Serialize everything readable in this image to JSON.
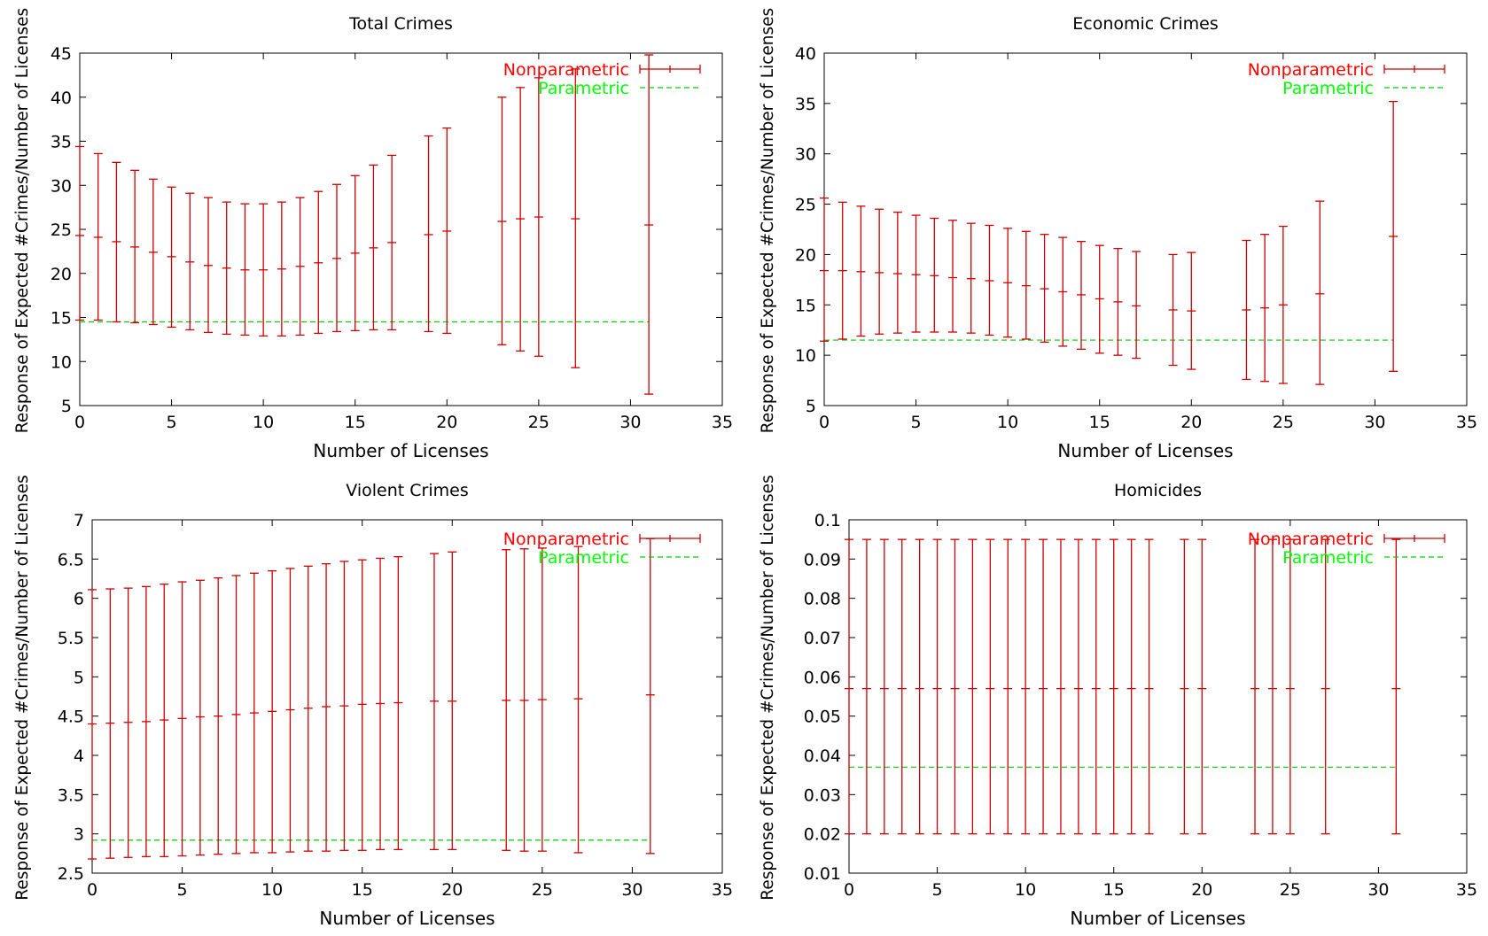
{
  "colors": {
    "nonparametric": "#cc0000",
    "parametric": "#00cc00",
    "axis": "#000000",
    "text": "#000000",
    "legend_nonparametric_text": "#ff0000",
    "legend_parametric_text": "#00ff00"
  },
  "chart_data": [
    {
      "type": "line",
      "title": "Total Crimes",
      "xlabel": "Number of Licenses",
      "ylabel": "Response of Expected #Crimes/Number of Licenses",
      "xlim": [
        0,
        35
      ],
      "ylim": [
        5,
        45
      ],
      "xticks": [
        0,
        5,
        10,
        15,
        20,
        25,
        30,
        35
      ],
      "yticks": [
        5,
        10,
        15,
        20,
        25,
        30,
        35,
        40,
        45
      ],
      "ytick_labels": [
        "5",
        "10",
        "15",
        "20",
        "25",
        "30",
        "35",
        "40",
        "45"
      ],
      "grid": false,
      "legend": "top-right",
      "series": [
        {
          "name": "Nonparametric",
          "style": "errorbars",
          "x": [
            0,
            1,
            2,
            3,
            4,
            5,
            6,
            7,
            8,
            9,
            10,
            11,
            12,
            13,
            14,
            15,
            16,
            17,
            19,
            20,
            23,
            24,
            25,
            27,
            31
          ],
          "y": [
            24.3,
            24.1,
            23.6,
            23.0,
            22.4,
            21.9,
            21.3,
            20.9,
            20.6,
            20.4,
            20.4,
            20.5,
            20.8,
            21.2,
            21.7,
            22.3,
            22.9,
            23.5,
            24.4,
            24.8,
            25.9,
            26.2,
            26.4,
            26.2,
            25.5
          ],
          "ylow": [
            14.7,
            14.7,
            14.5,
            14.4,
            14.2,
            13.9,
            13.6,
            13.3,
            13.1,
            13.0,
            12.9,
            12.9,
            13.0,
            13.2,
            13.4,
            13.5,
            13.6,
            13.6,
            13.4,
            13.2,
            11.9,
            11.2,
            10.6,
            9.3,
            6.3
          ],
          "yhigh": [
            34.4,
            33.6,
            32.6,
            31.7,
            30.7,
            29.8,
            29.1,
            28.6,
            28.1,
            27.9,
            27.9,
            28.1,
            28.6,
            29.3,
            30.1,
            31.1,
            32.3,
            33.4,
            35.6,
            36.5,
            40.0,
            41.1,
            42.2,
            43.2,
            44.8
          ]
        },
        {
          "name": "Parametric",
          "style": "dashed-line",
          "x": [
            0,
            31
          ],
          "y": [
            14.5,
            14.5
          ]
        }
      ]
    },
    {
      "type": "line",
      "title": "Economic Crimes",
      "xlabel": "Number of Licenses",
      "ylabel": "Response of Expected #Crimes/Number of Licenses",
      "xlim": [
        0,
        35
      ],
      "ylim": [
        5,
        40
      ],
      "xticks": [
        0,
        5,
        10,
        15,
        20,
        25,
        30,
        35
      ],
      "yticks": [
        5,
        10,
        15,
        20,
        25,
        30,
        35,
        40
      ],
      "ytick_labels": [
        "5",
        "10",
        "15",
        "20",
        "25",
        "30",
        "35",
        "40"
      ],
      "grid": false,
      "legend": "top-right",
      "series": [
        {
          "name": "Nonparametric",
          "style": "errorbars",
          "x": [
            0,
            1,
            2,
            3,
            4,
            5,
            6,
            7,
            8,
            9,
            10,
            11,
            12,
            13,
            14,
            15,
            16,
            17,
            19,
            20,
            23,
            24,
            25,
            27,
            31
          ],
          "y": [
            18.4,
            18.4,
            18.3,
            18.2,
            18.1,
            18.0,
            17.9,
            17.7,
            17.6,
            17.4,
            17.2,
            16.9,
            16.6,
            16.3,
            16.0,
            15.6,
            15.3,
            14.9,
            14.5,
            14.4,
            14.5,
            14.7,
            15.0,
            16.1,
            21.8
          ],
          "ylow": [
            11.4,
            11.6,
            11.9,
            12.1,
            12.2,
            12.3,
            12.3,
            12.3,
            12.2,
            12.0,
            11.8,
            11.6,
            11.3,
            10.9,
            10.6,
            10.2,
            10.0,
            9.7,
            9.0,
            8.6,
            7.6,
            7.4,
            7.2,
            7.1,
            8.4
          ],
          "yhigh": [
            25.6,
            25.2,
            24.8,
            24.5,
            24.2,
            23.9,
            23.6,
            23.4,
            23.1,
            22.9,
            22.6,
            22.3,
            22.0,
            21.7,
            21.3,
            20.9,
            20.6,
            20.3,
            20.0,
            20.2,
            21.4,
            22.0,
            22.8,
            25.3,
            35.2
          ]
        },
        {
          "name": "Parametric",
          "style": "dashed-line",
          "x": [
            0,
            31
          ],
          "y": [
            11.5,
            11.5
          ]
        }
      ]
    },
    {
      "type": "line",
      "title": "Violent Crimes",
      "xlabel": "Number of Licenses",
      "ylabel": "Response of Expected #Crimes/Number of Licenses",
      "xlim": [
        0,
        35
      ],
      "ylim": [
        2.5,
        7
      ],
      "xticks": [
        0,
        5,
        10,
        15,
        20,
        25,
        30,
        35
      ],
      "yticks": [
        2.5,
        3,
        3.5,
        4,
        4.5,
        5,
        5.5,
        6,
        6.5,
        7
      ],
      "ytick_labels": [
        "2.5",
        "3",
        "3.5",
        "4",
        "4.5",
        "5",
        "5.5",
        "6",
        "6.5",
        "7"
      ],
      "grid": false,
      "legend": "top-right",
      "series": [
        {
          "name": "Nonparametric",
          "style": "errorbars",
          "x": [
            0,
            1,
            2,
            3,
            4,
            5,
            6,
            7,
            8,
            9,
            10,
            11,
            12,
            13,
            14,
            15,
            16,
            17,
            19,
            20,
            23,
            24,
            25,
            27,
            31
          ],
          "y": [
            4.4,
            4.41,
            4.42,
            4.43,
            4.45,
            4.47,
            4.49,
            4.5,
            4.52,
            4.54,
            4.56,
            4.58,
            4.6,
            4.62,
            4.63,
            4.65,
            4.66,
            4.67,
            4.69,
            4.69,
            4.7,
            4.7,
            4.71,
            4.72,
            4.77
          ],
          "ylow": [
            2.68,
            2.69,
            2.7,
            2.71,
            2.71,
            2.72,
            2.73,
            2.74,
            2.75,
            2.76,
            2.76,
            2.77,
            2.78,
            2.78,
            2.79,
            2.79,
            2.8,
            2.8,
            2.8,
            2.8,
            2.79,
            2.78,
            2.78,
            2.76,
            2.75
          ],
          "yhigh": [
            6.11,
            6.12,
            6.13,
            6.15,
            6.18,
            6.21,
            6.23,
            6.26,
            6.29,
            6.32,
            6.35,
            6.38,
            6.41,
            6.44,
            6.47,
            6.49,
            6.51,
            6.53,
            6.57,
            6.59,
            6.62,
            6.63,
            6.64,
            6.66,
            6.76
          ]
        },
        {
          "name": "Parametric",
          "style": "dashed-line",
          "x": [
            0,
            31
          ],
          "y": [
            2.92,
            2.92
          ]
        }
      ]
    },
    {
      "type": "line",
      "title": "Homicides",
      "xlabel": "Number of Licenses",
      "ylabel": "Response of Expected #Crimes/Number of Licenses",
      "xlim": [
        0,
        35
      ],
      "ylim": [
        0.01,
        0.1
      ],
      "xticks": [
        0,
        5,
        10,
        15,
        20,
        25,
        30,
        35
      ],
      "yticks": [
        0.01,
        0.02,
        0.03,
        0.04,
        0.05,
        0.06,
        0.07,
        0.08,
        0.09,
        0.1
      ],
      "ytick_labels": [
        "0.01",
        "0.02",
        "0.03",
        "0.04",
        "0.05",
        "0.06",
        "0.07",
        "0.08",
        "0.09",
        "0.1"
      ],
      "grid": false,
      "legend": "top-right",
      "series": [
        {
          "name": "Nonparametric",
          "style": "errorbars",
          "x": [
            0,
            1,
            2,
            3,
            4,
            5,
            6,
            7,
            8,
            9,
            10,
            11,
            12,
            13,
            14,
            15,
            16,
            17,
            19,
            20,
            23,
            24,
            25,
            27,
            31
          ],
          "y": [
            0.057,
            0.057,
            0.057,
            0.057,
            0.057,
            0.057,
            0.057,
            0.057,
            0.057,
            0.057,
            0.057,
            0.057,
            0.057,
            0.057,
            0.057,
            0.057,
            0.057,
            0.057,
            0.057,
            0.057,
            0.057,
            0.057,
            0.057,
            0.057,
            0.057
          ],
          "ylow": [
            0.02,
            0.02,
            0.02,
            0.02,
            0.02,
            0.02,
            0.02,
            0.02,
            0.02,
            0.02,
            0.02,
            0.02,
            0.02,
            0.02,
            0.02,
            0.02,
            0.02,
            0.02,
            0.02,
            0.02,
            0.02,
            0.02,
            0.02,
            0.02,
            0.02
          ],
          "yhigh": [
            0.095,
            0.095,
            0.095,
            0.095,
            0.095,
            0.095,
            0.095,
            0.095,
            0.095,
            0.095,
            0.095,
            0.095,
            0.095,
            0.095,
            0.095,
            0.095,
            0.095,
            0.095,
            0.095,
            0.095,
            0.095,
            0.095,
            0.095,
            0.095,
            0.095
          ]
        },
        {
          "name": "Parametric",
          "style": "dashed-line",
          "x": [
            0,
            31
          ],
          "y": [
            0.037,
            0.037
          ]
        }
      ]
    }
  ]
}
